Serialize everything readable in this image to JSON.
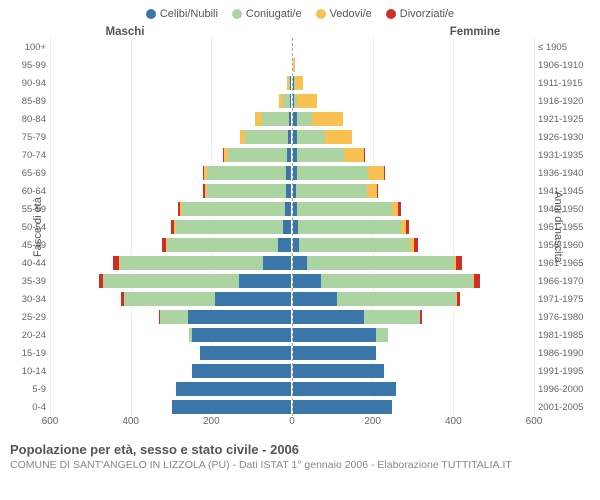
{
  "type": "population-pyramid",
  "legend": [
    {
      "label": "Celibi/Nubili",
      "color": "#3b76ab"
    },
    {
      "label": "Coniugati/e",
      "color": "#acd3a2"
    },
    {
      "label": "Vedovi/e",
      "color": "#f9c152"
    },
    {
      "label": "Divorziati/e",
      "color": "#d02f29"
    }
  ],
  "header_male": "Maschi",
  "header_female": "Femmine",
  "ylabel_left": "Fasce di età",
  "ylabel_right": "Anni di nascita",
  "xmax": 600,
  "xticks": [
    600,
    400,
    200,
    0,
    200,
    400,
    600
  ],
  "title": "Popolazione per età, sesso e stato civile - 2006",
  "subtitle": "COMUNE DI SANT'ANGELO IN LIZZOLA (PU) - Dati ISTAT 1° gennaio 2006 - Elaborazione TUTTITALIA.IT",
  "colors": {
    "cel": "#3b76ab",
    "con": "#acd3a2",
    "ved": "#f9c152",
    "div": "#d02f29"
  },
  "background": "#ffffff",
  "grid_color": "#eeeeee",
  "centerline_color": "#aaaaaa",
  "rows": [
    {
      "age": "100+",
      "birth": "≤ 1905",
      "m": {
        "cel": 0,
        "con": 0,
        "ved": 0,
        "div": 0
      },
      "f": {
        "cel": 0,
        "con": 0,
        "ved": 3,
        "div": 0
      }
    },
    {
      "age": "95-99",
      "birth": "1906-1910",
      "m": {
        "cel": 0,
        "con": 0,
        "ved": 2,
        "div": 0
      },
      "f": {
        "cel": 2,
        "con": 0,
        "ved": 8,
        "div": 0
      }
    },
    {
      "age": "90-94",
      "birth": "1911-1915",
      "m": {
        "cel": 2,
        "con": 6,
        "ved": 6,
        "div": 0
      },
      "f": {
        "cel": 3,
        "con": 2,
        "ved": 26,
        "div": 0
      }
    },
    {
      "age": "85-89",
      "birth": "1916-1920",
      "m": {
        "cel": 2,
        "con": 22,
        "ved": 10,
        "div": 0
      },
      "f": {
        "cel": 4,
        "con": 8,
        "ved": 52,
        "div": 0
      }
    },
    {
      "age": "80-84",
      "birth": "1921-1925",
      "m": {
        "cel": 6,
        "con": 70,
        "ved": 18,
        "div": 0
      },
      "f": {
        "cel": 10,
        "con": 38,
        "ved": 82,
        "div": 0
      }
    },
    {
      "age": "75-79",
      "birth": "1926-1930",
      "m": {
        "cel": 8,
        "con": 110,
        "ved": 14,
        "div": 0
      },
      "f": {
        "cel": 10,
        "con": 72,
        "ved": 70,
        "div": 0
      }
    },
    {
      "age": "70-74",
      "birth": "1931-1935",
      "m": {
        "cel": 10,
        "con": 150,
        "ved": 12,
        "div": 2
      },
      "f": {
        "cel": 10,
        "con": 120,
        "ved": 52,
        "div": 2
      }
    },
    {
      "age": "65-69",
      "birth": "1936-1940",
      "m": {
        "cel": 12,
        "con": 200,
        "ved": 8,
        "div": 4
      },
      "f": {
        "cel": 10,
        "con": 180,
        "ved": 40,
        "div": 4
      }
    },
    {
      "age": "60-64",
      "birth": "1941-1945",
      "m": {
        "cel": 12,
        "con": 200,
        "ved": 6,
        "div": 4
      },
      "f": {
        "cel": 8,
        "con": 180,
        "ved": 24,
        "div": 4
      }
    },
    {
      "age": "55-59",
      "birth": "1946-1950",
      "m": {
        "cel": 16,
        "con": 260,
        "ved": 4,
        "div": 6
      },
      "f": {
        "cel": 10,
        "con": 240,
        "ved": 16,
        "div": 6
      }
    },
    {
      "age": "50-54",
      "birth": "1951-1955",
      "m": {
        "cel": 20,
        "con": 270,
        "ved": 4,
        "div": 8
      },
      "f": {
        "cel": 12,
        "con": 260,
        "ved": 12,
        "div": 8
      }
    },
    {
      "age": "45-49",
      "birth": "1956-1960",
      "m": {
        "cel": 32,
        "con": 280,
        "ved": 2,
        "div": 10
      },
      "f": {
        "cel": 16,
        "con": 280,
        "ved": 8,
        "div": 10
      }
    },
    {
      "age": "40-44",
      "birth": "1961-1965",
      "m": {
        "cel": 70,
        "con": 360,
        "ved": 2,
        "div": 14
      },
      "f": {
        "cel": 34,
        "con": 370,
        "ved": 6,
        "div": 14
      }
    },
    {
      "age": "35-39",
      "birth": "1966-1970",
      "m": {
        "cel": 130,
        "con": 340,
        "ved": 0,
        "div": 12
      },
      "f": {
        "cel": 70,
        "con": 380,
        "ved": 4,
        "div": 14
      }
    },
    {
      "age": "30-34",
      "birth": "1971-1975",
      "m": {
        "cel": 190,
        "con": 230,
        "ved": 0,
        "div": 6
      },
      "f": {
        "cel": 110,
        "con": 300,
        "ved": 2,
        "div": 8
      }
    },
    {
      "age": "25-29",
      "birth": "1976-1980",
      "m": {
        "cel": 260,
        "con": 70,
        "ved": 0,
        "div": 2
      },
      "f": {
        "cel": 180,
        "con": 140,
        "ved": 0,
        "div": 4
      }
    },
    {
      "age": "20-24",
      "birth": "1981-1985",
      "m": {
        "cel": 250,
        "con": 8,
        "ved": 0,
        "div": 0
      },
      "f": {
        "cel": 210,
        "con": 30,
        "ved": 0,
        "div": 0
      }
    },
    {
      "age": "15-19",
      "birth": "1986-1990",
      "m": {
        "cel": 230,
        "con": 0,
        "ved": 0,
        "div": 0
      },
      "f": {
        "cel": 210,
        "con": 0,
        "ved": 0,
        "div": 0
      }
    },
    {
      "age": "10-14",
      "birth": "1991-1995",
      "m": {
        "cel": 250,
        "con": 0,
        "ved": 0,
        "div": 0
      },
      "f": {
        "cel": 230,
        "con": 0,
        "ved": 0,
        "div": 0
      }
    },
    {
      "age": "5-9",
      "birth": "1996-2000",
      "m": {
        "cel": 290,
        "con": 0,
        "ved": 0,
        "div": 0
      },
      "f": {
        "cel": 260,
        "con": 0,
        "ved": 0,
        "div": 0
      }
    },
    {
      "age": "0-4",
      "birth": "2001-2005",
      "m": {
        "cel": 300,
        "con": 0,
        "ved": 0,
        "div": 0
      },
      "f": {
        "cel": 250,
        "con": 0,
        "ved": 0,
        "div": 0
      }
    }
  ]
}
